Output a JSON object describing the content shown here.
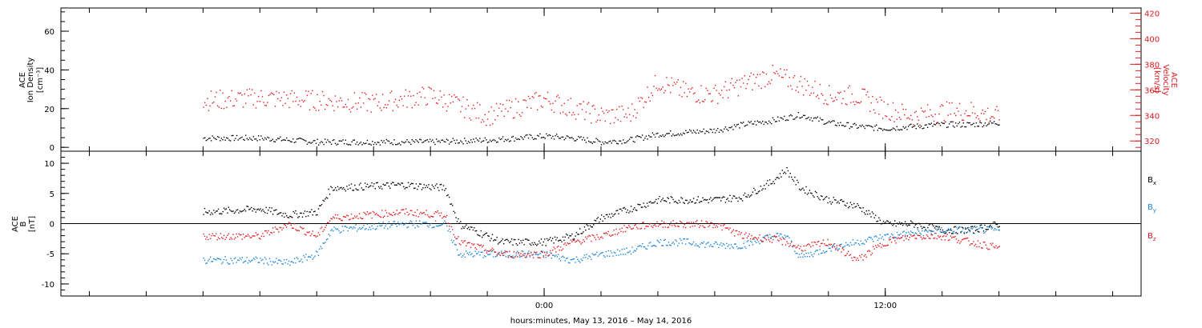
{
  "chart_data": [
    {
      "type": "scatter",
      "panel": "top",
      "left_axis_label_lines": [
        "ACE",
        "Ion Density",
        "[cm⁻³]"
      ],
      "right_axis_label_lines": [
        "ACE",
        "Velocity",
        "[km/s]"
      ],
      "ylim_left": [
        -2,
        72
      ],
      "ylim_right": [
        312,
        424
      ],
      "left_ticks": [
        "0",
        "20",
        "40",
        "60"
      ],
      "right_ticks": [
        "320",
        "340",
        "360",
        "380",
        "400",
        "420"
      ],
      "series": [
        {
          "name": "",
          "axis": "left",
          "color": "#000000",
          "x": [
            -12,
            -10,
            -8,
            -6,
            -4,
            -2,
            0,
            1,
            2,
            3,
            4,
            5,
            6,
            7,
            8,
            9,
            10,
            11,
            12,
            13,
            14,
            15,
            16
          ],
          "values": [
            5,
            5,
            3,
            3,
            3,
            4,
            6,
            5,
            3,
            4,
            7,
            8,
            9,
            12,
            14,
            17,
            13,
            11,
            10,
            11,
            12,
            12,
            13
          ]
        },
        {
          "name": "",
          "axis": "right",
          "color": "#e0191e",
          "x": [
            -12,
            -10,
            -8,
            -6,
            -4,
            -2,
            0,
            1,
            2,
            3,
            4,
            5,
            6,
            7,
            8,
            9,
            10,
            11,
            12,
            13,
            14,
            15,
            16
          ],
          "values": [
            352,
            354,
            352,
            350,
            356,
            340,
            353,
            346,
            340,
            341,
            367,
            358,
            357,
            365,
            372,
            365,
            356,
            356,
            345,
            340,
            343,
            344,
            339
          ]
        }
      ]
    },
    {
      "type": "scatter",
      "panel": "bottom",
      "left_axis_label_lines": [
        "ACE",
        "B",
        "[nT]"
      ],
      "ylim": [
        -12,
        12
      ],
      "left_ticks": [
        "-10",
        "-5",
        "0",
        "5",
        "10"
      ],
      "zero_line": true,
      "series": [
        {
          "name": "Bx",
          "color": "#000000",
          "x": [
            -12,
            -10,
            -9,
            -8,
            -7.5,
            -5,
            -3.5,
            -3,
            -1.5,
            0,
            1,
            2,
            3,
            4,
            5,
            6,
            7,
            8,
            8.5,
            9,
            10,
            11,
            12,
            13,
            14,
            15,
            16
          ],
          "values": [
            2,
            2.5,
            1.5,
            2,
            6,
            6.5,
            6,
            0,
            -3,
            -3,
            -2,
            1,
            2.5,
            4,
            4,
            4,
            4.5,
            7,
            9,
            6,
            4,
            3,
            0,
            0,
            -1,
            -1,
            0
          ]
        },
        {
          "name": "By",
          "color": "#1a84d8",
          "x": [
            -12,
            -10,
            -9,
            -8,
            -7.5,
            -5,
            -3.5,
            -3,
            -1.5,
            0,
            1,
            2,
            3,
            4,
            5,
            6,
            7,
            8,
            8.5,
            9,
            10,
            11,
            12,
            13,
            14,
            15,
            16
          ],
          "values": [
            -6,
            -6,
            -6.5,
            -5,
            -1,
            0,
            0,
            -5,
            -5,
            -5,
            -6,
            -5,
            -4.5,
            -3,
            -3,
            -3.5,
            -3.5,
            -2,
            -2,
            -5.5,
            -4,
            -3,
            -2,
            -1.5,
            -1,
            -1,
            -1
          ]
        },
        {
          "name": "Bz",
          "color": "#e0191e",
          "x": [
            -12,
            -10,
            -9,
            -8,
            -7.5,
            -5,
            -3.5,
            -3,
            -1.5,
            0,
            1,
            2,
            3,
            4,
            5,
            6,
            7,
            8,
            8.5,
            9,
            10,
            11,
            12,
            13,
            14,
            15,
            16
          ],
          "values": [
            -2,
            -2,
            0,
            -2,
            1,
            2,
            1.5,
            -3,
            -5,
            -5,
            -3,
            -2,
            -0.5,
            0,
            0,
            0,
            -2,
            -2.5,
            -3,
            -4,
            -3,
            -6,
            -3,
            -2,
            -2,
            -3,
            -4
          ]
        }
      ],
      "legend": [
        {
          "text": "B",
          "sub": "x",
          "color": "#000000"
        },
        {
          "text": "B",
          "sub": "y",
          "color": "#1a84d8"
        },
        {
          "text": "B",
          "sub": "z",
          "color": "#e0191e"
        }
      ]
    }
  ],
  "x_axis": {
    "title": "hours:minutes, May 13, 2016 – May 14, 2016",
    "range_hours": [
      -17,
      21
    ],
    "tick_labels": [
      {
        "hour": 0,
        "label": "0:00"
      },
      {
        "hour": 12,
        "label": "12:00"
      }
    ],
    "minor_step_hours": 2
  }
}
